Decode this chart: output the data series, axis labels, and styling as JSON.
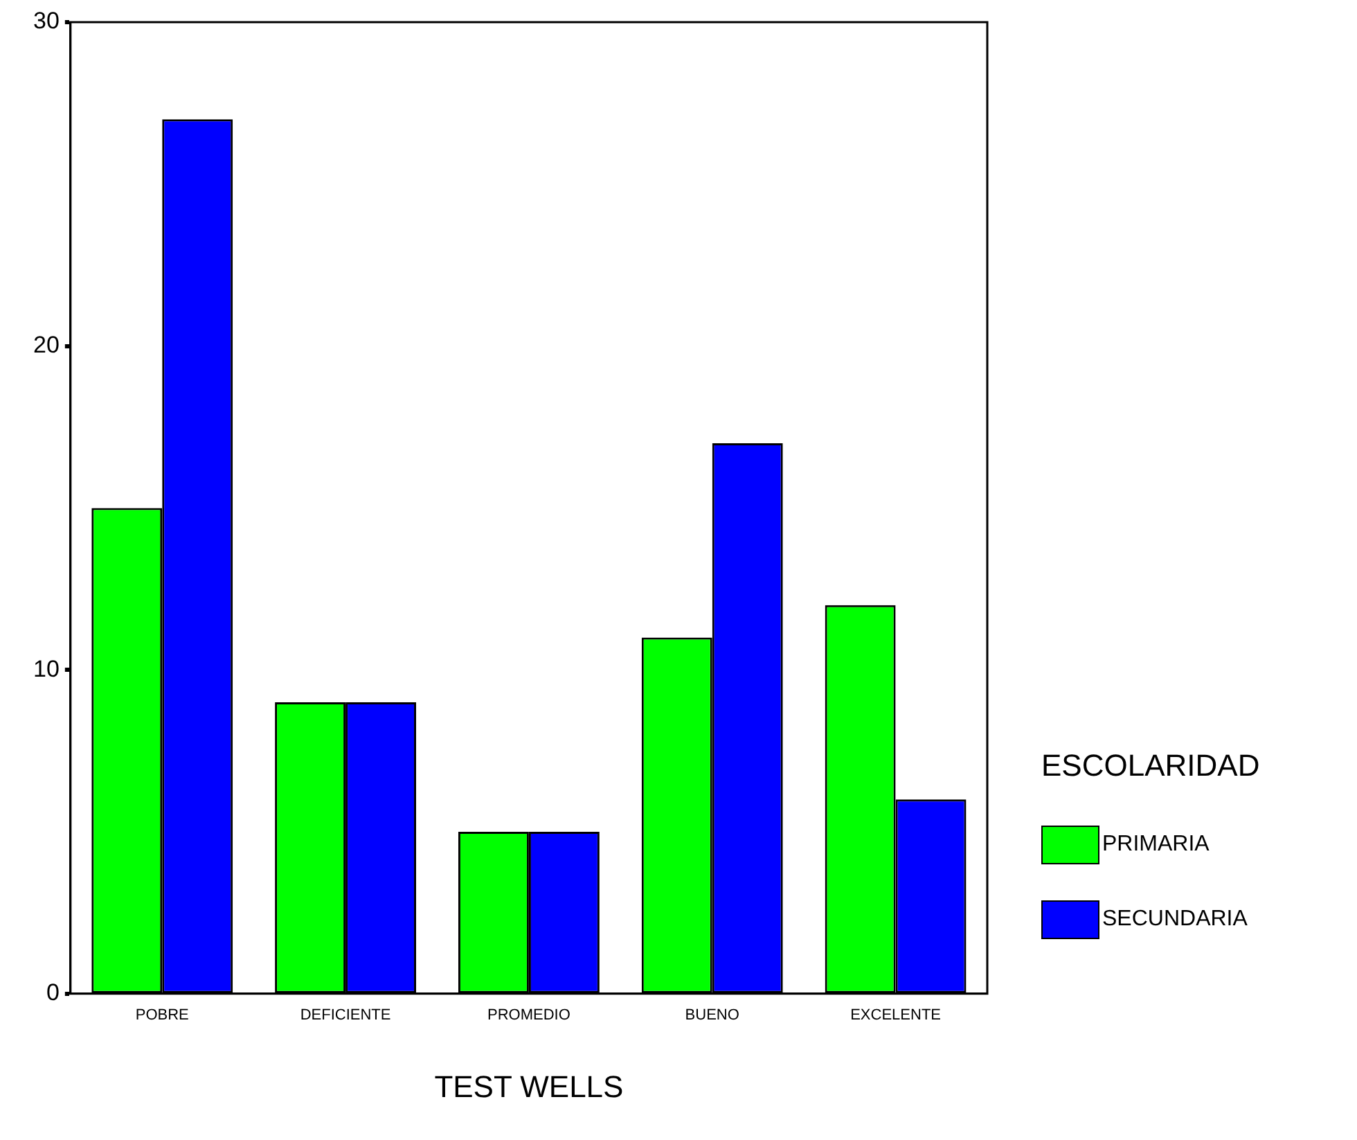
{
  "chart_data": {
    "type": "bar",
    "xlabel": "TEST WELLS",
    "legend_title": "ESCOLARIDAD",
    "legend": "right",
    "categories": [
      "POBRE",
      "DEFICIENTE",
      "PROMEDIO",
      "BUENO",
      "EXCELENTE"
    ],
    "series": [
      {
        "name": "PRIMARIA",
        "color": "#00ff00",
        "values": [
          15,
          9,
          5,
          11,
          12
        ]
      },
      {
        "name": "SECUNDARIA",
        "color": "#0000ff",
        "values": [
          27,
          9,
          5,
          17,
          6
        ]
      }
    ],
    "ylim": [
      0,
      30
    ],
    "yticks": [
      0,
      10,
      20,
      30
    ],
    "grid": false
  }
}
